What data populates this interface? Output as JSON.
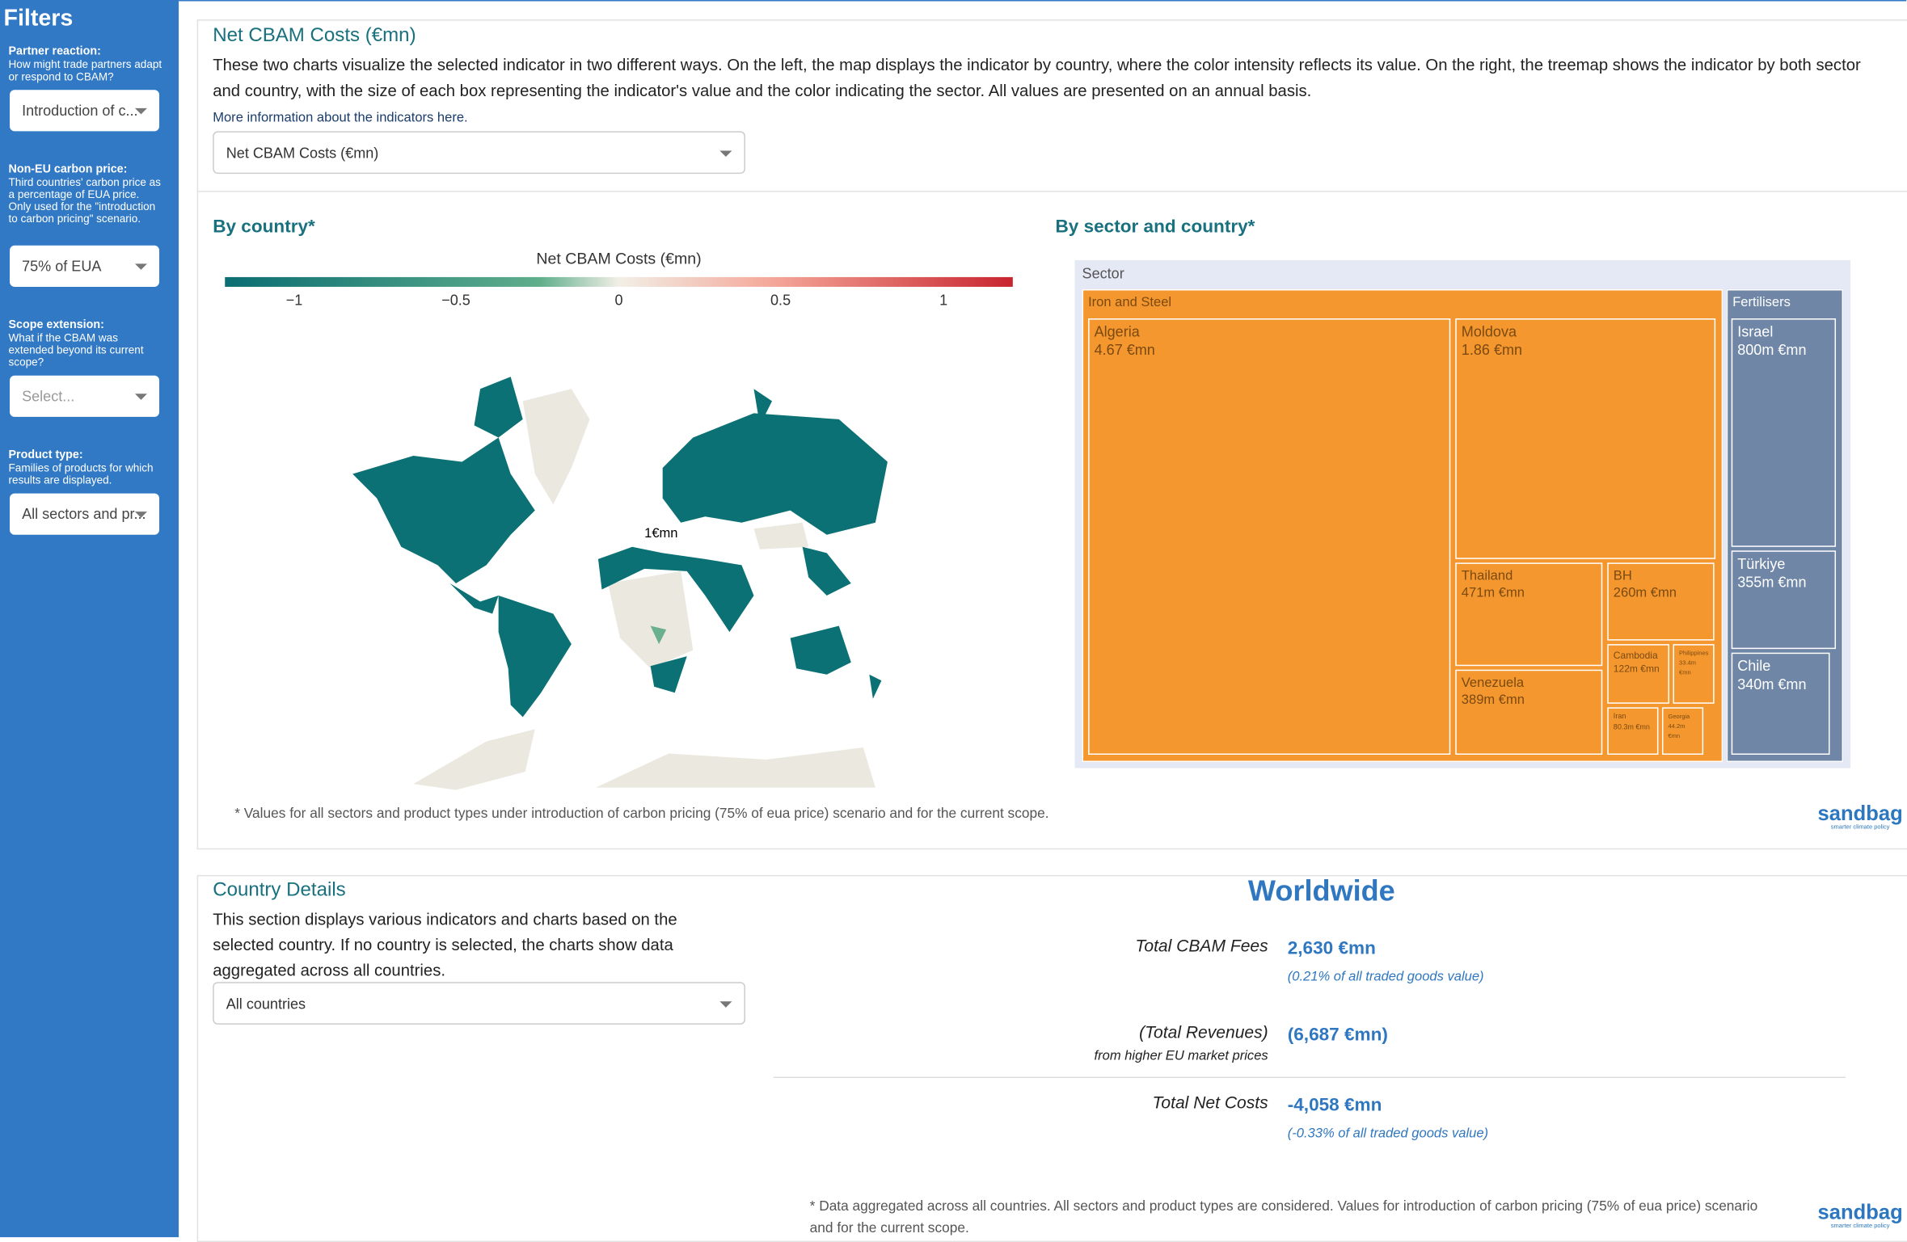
{
  "sidebar": {
    "title": "Filters",
    "filters": [
      {
        "label": "Partner reaction:",
        "help": "How might trade partners adapt or respond to CBAM?",
        "value": "Introduction of c..."
      },
      {
        "label": "Non-EU carbon price:",
        "help": "Third countries' carbon price as a percentage of EUA price. Only used for the \"introduction to carbon pricing\" scenario.",
        "value": "75% of EUA"
      },
      {
        "label": "Scope extension:",
        "help": "What if the CBAM was extended beyond its current scope?",
        "value": "Select..."
      },
      {
        "label": "Product type:",
        "help": "Families of products for which results are displayed.",
        "value": "All sectors and pr..."
      }
    ]
  },
  "indicator": {
    "title": "Net CBAM Costs (€mn)",
    "description": "These two charts visualize the selected indicator in two different ways. On the left, the map displays the indicator by country, where the color intensity reflects its value. On the right, the treemap shows the indicator by both sector and country, with the size of each box representing the indicator's value and the color indicating the sector. All values are presented on an annual basis.",
    "link": "More information about the indicators here.",
    "select": "Net CBAM Costs (€mn)"
  },
  "map": {
    "title": "By country*",
    "legend_title": "Net CBAM Costs (€mn)",
    "legend_ticks": [
      "−1",
      "−0.5",
      "0",
      "0.5",
      "1"
    ],
    "hover_label": "1€mn"
  },
  "treemap": {
    "title": "By sector and country*",
    "root": "Sector",
    "sectors": [
      {
        "name": "Iron and Steel",
        "items": [
          {
            "name": "Algeria",
            "value": "4.67 €mn"
          },
          {
            "name": "Moldova",
            "value": "1.86 €mn"
          },
          {
            "name": "Thailand",
            "value": "471m €mn"
          },
          {
            "name": "Venezuela",
            "value": "389m €mn"
          },
          {
            "name": "BH",
            "value": "260m €mn"
          },
          {
            "name": "Cambodia",
            "value": "122m €mn"
          },
          {
            "name": "Philippines",
            "value": "33.4m €mn"
          },
          {
            "name": "Iran",
            "value": "80.3m €mn"
          },
          {
            "name": "Georgia",
            "value": "44.2m €mn"
          }
        ]
      },
      {
        "name": "Fertilisers",
        "items": [
          {
            "name": "Israel",
            "value": "800m €mn"
          },
          {
            "name": "Türkiye",
            "value": "355m €mn"
          },
          {
            "name": "Chile",
            "value": "340m €mn"
          }
        ]
      }
    ]
  },
  "footnote": "* Values for all sectors and product types under introduction of carbon pricing (75% of eua price) scenario and for the current scope.",
  "logo": {
    "name": "sandbag",
    "tagline": "smarter climate policy"
  },
  "details": {
    "title": "Country Details",
    "description": "This section displays various indicators and charts based on the selected country. If no country is selected, the charts show data aggregated across all countries.",
    "select": "All countries",
    "region": "Worldwide",
    "rows": [
      {
        "label": "Total CBAM Fees",
        "value": "2,630 €mn",
        "note": "(0.21% of all traded goods value)"
      },
      {
        "label": "(Total Revenues)",
        "sublabel": "from higher EU market prices",
        "value": "(6,687 €mn)"
      },
      {
        "label": "Total Net Costs",
        "value": "-4,058 €mn",
        "note": "(-0.33% of all traded goods value)"
      }
    ],
    "footnote": "* Data aggregated across all countries. All sectors and product types are considered. Values for introduction of carbon pricing (75% of eua price) scenario and for the current scope."
  }
}
